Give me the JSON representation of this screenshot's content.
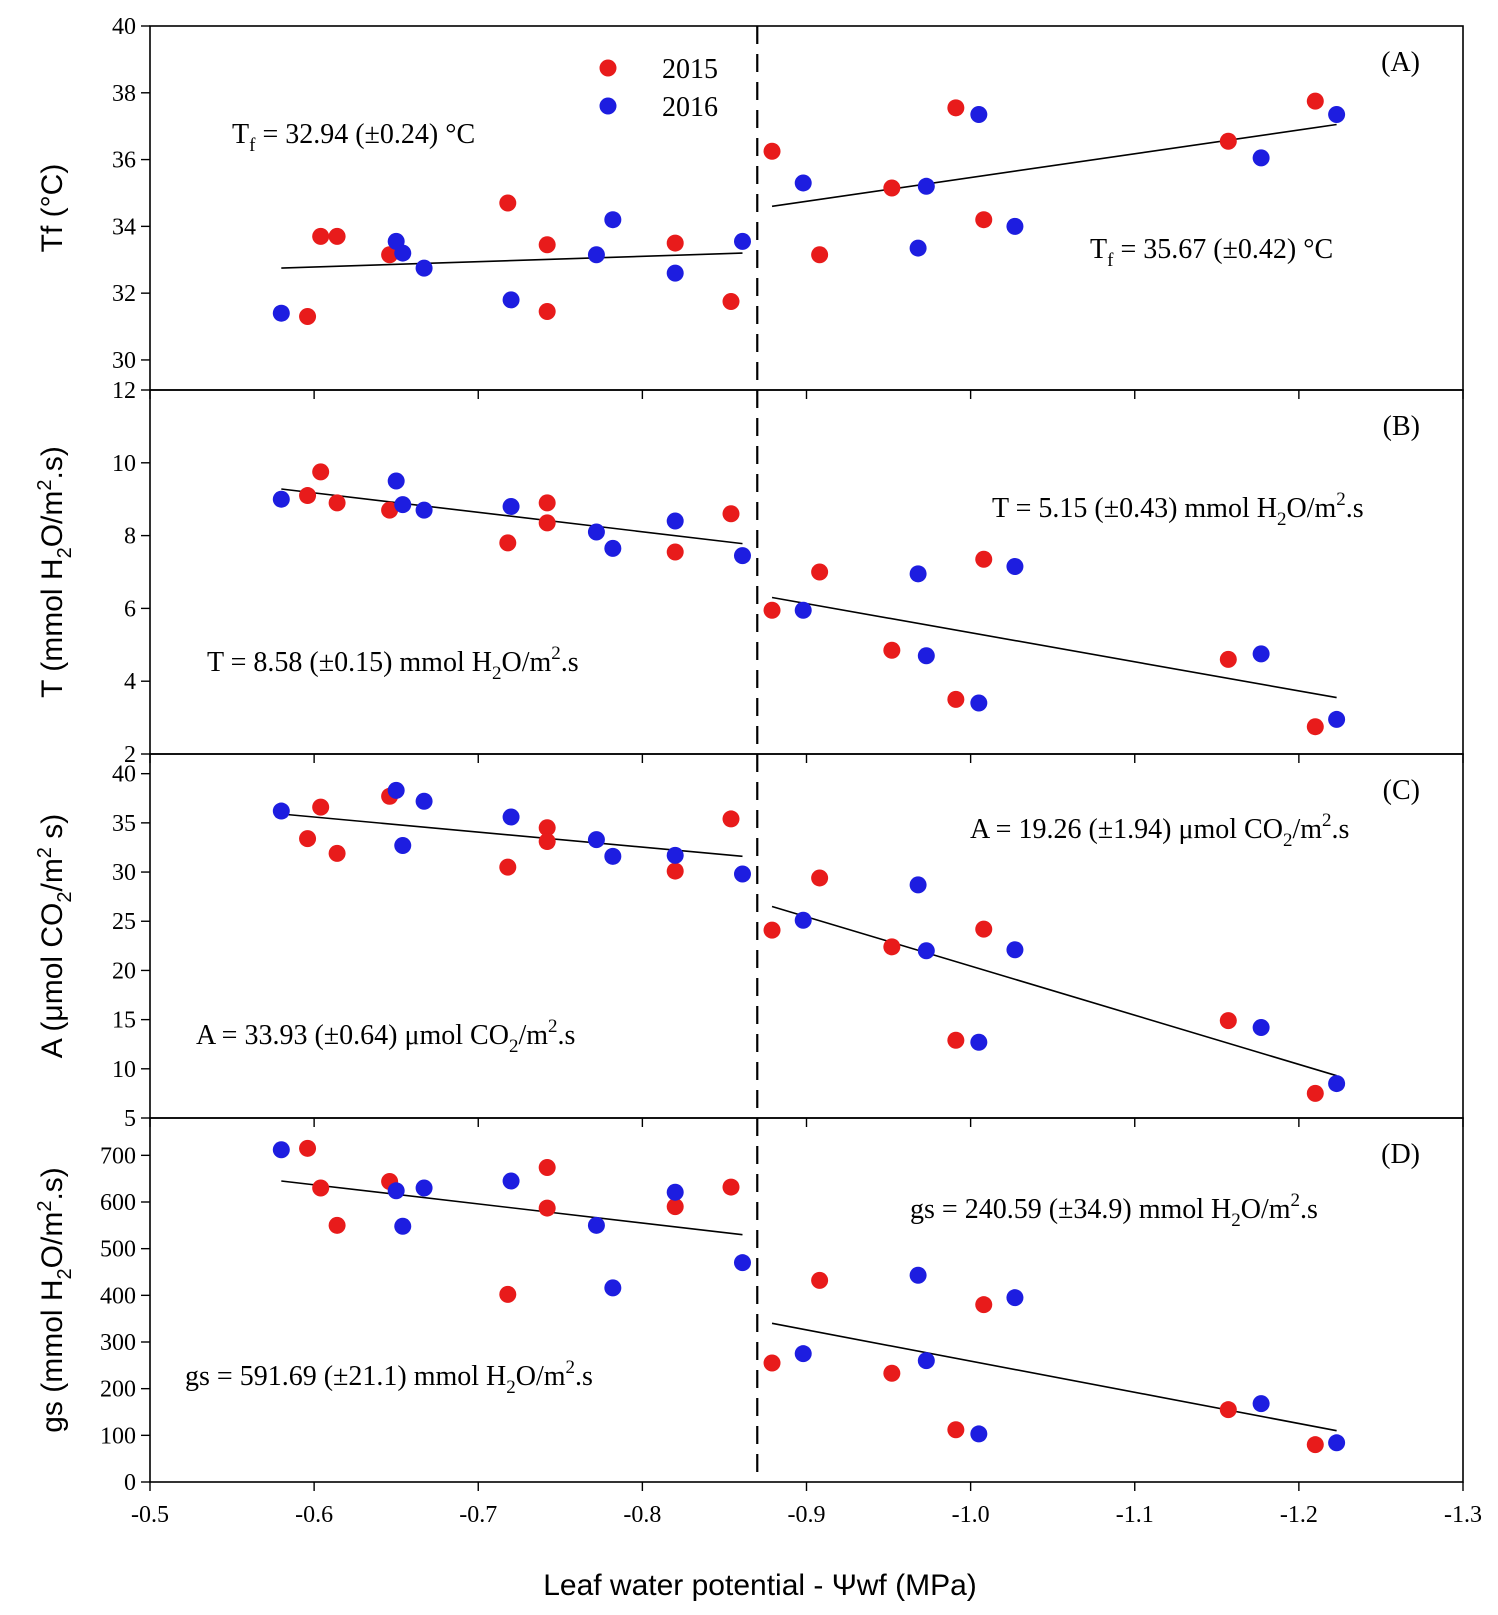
{
  "figure": {
    "xlabel": "Leaf water potential - Ψwf (MPa)",
    "legend": [
      {
        "label": "2015",
        "color": "#e81b1b"
      },
      {
        "label": "2016",
        "color": "#1d1de0"
      }
    ],
    "threshold_x": -0.87
  },
  "chart_data": [
    {
      "type": "scatter",
      "panel": "(A)",
      "ylabel": "Tf (°C)",
      "xlim": [
        -0.5,
        -1.3
      ],
      "ylim": [
        29.1,
        40
      ],
      "yticks": [
        30,
        32,
        34,
        36,
        38,
        40
      ],
      "series": [
        {
          "name": "2015",
          "color": "#e81b1b",
          "points": [
            [
              -0.596,
              31.3
            ],
            [
              -0.604,
              33.7
            ],
            [
              -0.614,
              33.7
            ],
            [
              -0.646,
              33.15
            ],
            [
              -0.718,
              34.7
            ],
            [
              -0.742,
              31.45
            ],
            [
              -0.742,
              33.45
            ],
            [
              -0.82,
              33.5
            ],
            [
              -0.854,
              31.75
            ],
            [
              -0.879,
              36.25
            ],
            [
              -0.908,
              33.15
            ],
            [
              -0.952,
              35.15
            ],
            [
              -0.991,
              37.55
            ],
            [
              -1.008,
              34.2
            ],
            [
              -1.157,
              36.55
            ],
            [
              -1.21,
              37.75
            ]
          ]
        },
        {
          "name": "2016",
          "color": "#1d1de0",
          "points": [
            [
              -0.58,
              31.4
            ],
            [
              -0.65,
              33.55
            ],
            [
              -0.654,
              33.2
            ],
            [
              -0.667,
              32.75
            ],
            [
              -0.72,
              31.8
            ],
            [
              -0.772,
              33.15
            ],
            [
              -0.782,
              34.2
            ],
            [
              -0.82,
              32.6
            ],
            [
              -0.861,
              33.55
            ],
            [
              -0.898,
              35.3
            ],
            [
              -0.968,
              33.35
            ],
            [
              -0.973,
              35.2
            ],
            [
              -1.005,
              37.35
            ],
            [
              -1.027,
              34.0
            ],
            [
              -1.177,
              36.05
            ],
            [
              -1.223,
              37.35
            ]
          ]
        }
      ],
      "fits": [
        {
          "x": [
            -0.58,
            -0.861
          ],
          "y": [
            32.75,
            33.2
          ]
        },
        {
          "x": [
            -0.879,
            -1.223
          ],
          "y": [
            34.6,
            37.05
          ]
        }
      ],
      "annotations": [
        {
          "prefix": "T",
          "sub": "f",
          "text": " = 32.94 (±0.24) °C"
        },
        {
          "prefix": "T",
          "sub": "f",
          "text": " = 35.67 (±0.42) °C"
        }
      ]
    },
    {
      "type": "scatter",
      "panel": "(B)",
      "ylabel": "T (mmol H2O/m2.s)",
      "xlim": [
        -0.5,
        -1.3
      ],
      "ylim": [
        2,
        12
      ],
      "yticks": [
        2,
        4,
        6,
        8,
        10,
        12
      ],
      "series": [
        {
          "name": "2015",
          "color": "#e81b1b",
          "points": [
            [
              -0.596,
              9.1
            ],
            [
              -0.604,
              9.75
            ],
            [
              -0.614,
              8.9
            ],
            [
              -0.646,
              8.7
            ],
            [
              -0.718,
              7.8
            ],
            [
              -0.742,
              8.9
            ],
            [
              -0.742,
              8.35
            ],
            [
              -0.82,
              7.55
            ],
            [
              -0.854,
              8.6
            ],
            [
              -0.879,
              5.95
            ],
            [
              -0.908,
              7.0
            ],
            [
              -0.952,
              4.85
            ],
            [
              -0.991,
              3.5
            ],
            [
              -1.008,
              7.35
            ],
            [
              -1.157,
              4.6
            ],
            [
              -1.21,
              2.75
            ]
          ]
        },
        {
          "name": "2016",
          "color": "#1d1de0",
          "points": [
            [
              -0.58,
              9.0
            ],
            [
              -0.65,
              9.5
            ],
            [
              -0.654,
              8.85
            ],
            [
              -0.667,
              8.7
            ],
            [
              -0.72,
              8.8
            ],
            [
              -0.772,
              8.1
            ],
            [
              -0.782,
              7.65
            ],
            [
              -0.82,
              8.4
            ],
            [
              -0.861,
              7.45
            ],
            [
              -0.898,
              5.95
            ],
            [
              -0.968,
              6.95
            ],
            [
              -0.973,
              4.7
            ],
            [
              -1.005,
              3.4
            ],
            [
              -1.027,
              7.15
            ],
            [
              -1.177,
              4.75
            ],
            [
              -1.223,
              2.95
            ]
          ]
        }
      ],
      "fits": [
        {
          "x": [
            -0.58,
            -0.861
          ],
          "y": [
            9.28,
            7.78
          ]
        },
        {
          "x": [
            -0.879,
            -1.223
          ],
          "y": [
            6.3,
            3.55
          ]
        }
      ],
      "annotations": [
        {
          "text": "T = 5.15 (±0.43) mmol H",
          "sub": "2",
          "mid": "O/m",
          "sup": "2",
          "end": ".s"
        },
        {
          "text": "T = 8.58 (±0.15) mmol H",
          "sub": "2",
          "mid": "O/m",
          "sup": "2",
          "end": ".s"
        }
      ]
    },
    {
      "type": "scatter",
      "panel": "(C)",
      "ylabel": "A (μmol CO2/m2 s)",
      "xlim": [
        -0.5,
        -1.3
      ],
      "ylim": [
        5,
        42
      ],
      "yticks": [
        5,
        10,
        15,
        20,
        25,
        30,
        35,
        40
      ],
      "series": [
        {
          "name": "2015",
          "color": "#e81b1b",
          "points": [
            [
              -0.596,
              33.4
            ],
            [
              -0.604,
              36.6
            ],
            [
              -0.614,
              31.9
            ],
            [
              -0.646,
              37.7
            ],
            [
              -0.718,
              30.5
            ],
            [
              -0.742,
              34.5
            ],
            [
              -0.742,
              33.1
            ],
            [
              -0.82,
              30.1
            ],
            [
              -0.854,
              35.4
            ],
            [
              -0.879,
              24.1
            ],
            [
              -0.908,
              29.4
            ],
            [
              -0.952,
              22.4
            ],
            [
              -0.991,
              12.9
            ],
            [
              -1.008,
              24.2
            ],
            [
              -1.157,
              14.9
            ],
            [
              -1.21,
              7.5
            ]
          ]
        },
        {
          "name": "2016",
          "color": "#1d1de0",
          "points": [
            [
              -0.58,
              36.2
            ],
            [
              -0.65,
              38.3
            ],
            [
              -0.654,
              32.7
            ],
            [
              -0.667,
              37.2
            ],
            [
              -0.72,
              35.6
            ],
            [
              -0.772,
              33.3
            ],
            [
              -0.782,
              31.6
            ],
            [
              -0.82,
              31.7
            ],
            [
              -0.861,
              29.8
            ],
            [
              -0.898,
              25.1
            ],
            [
              -0.968,
              28.7
            ],
            [
              -0.973,
              22.0
            ],
            [
              -1.005,
              12.7
            ],
            [
              -1.027,
              22.1
            ],
            [
              -1.177,
              14.2
            ],
            [
              -1.223,
              8.5
            ]
          ]
        }
      ],
      "fits": [
        {
          "x": [
            -0.58,
            -0.861
          ],
          "y": [
            35.9,
            31.6
          ]
        },
        {
          "x": [
            -0.879,
            -1.223
          ],
          "y": [
            26.5,
            9.3
          ]
        }
      ],
      "annotations": [
        {
          "text": "A = 19.26 (±1.94) μmol CO",
          "sub": "2",
          "mid": "/m",
          "sup": "2",
          "end": ".s"
        },
        {
          "text": "A = 33.93 (±0.64) μmol CO",
          "sub": "2",
          "mid": "/m",
          "sup": "2",
          "end": ".s"
        }
      ]
    },
    {
      "type": "scatter",
      "panel": "(D)",
      "ylabel": "gs (mmol H2O/m2.s)",
      "xlim": [
        -0.5,
        -1.3
      ],
      "ylim": [
        0,
        780
      ],
      "yticks": [
        0,
        100,
        200,
        300,
        400,
        500,
        600,
        700
      ],
      "series": [
        {
          "name": "2015",
          "color": "#e81b1b",
          "points": [
            [
              -0.596,
              715
            ],
            [
              -0.604,
              630
            ],
            [
              -0.614,
              550
            ],
            [
              -0.646,
              644
            ],
            [
              -0.718,
              402
            ],
            [
              -0.742,
              674
            ],
            [
              -0.742,
              587
            ],
            [
              -0.82,
              590
            ],
            [
              -0.854,
              632
            ],
            [
              -0.879,
              255
            ],
            [
              -0.908,
              432
            ],
            [
              -0.952,
              233
            ],
            [
              -0.991,
              112
            ],
            [
              -1.008,
              380
            ],
            [
              -1.157,
              155
            ],
            [
              -1.21,
              80
            ]
          ]
        },
        {
          "name": "2016",
          "color": "#1d1de0",
          "points": [
            [
              -0.58,
              712
            ],
            [
              -0.65,
              624
            ],
            [
              -0.654,
              548
            ],
            [
              -0.667,
              630
            ],
            [
              -0.72,
              645
            ],
            [
              -0.772,
              550
            ],
            [
              -0.782,
              416
            ],
            [
              -0.82,
              621
            ],
            [
              -0.861,
              470
            ],
            [
              -0.898,
              275
            ],
            [
              -0.968,
              443
            ],
            [
              -0.973,
              260
            ],
            [
              -1.005,
              103
            ],
            [
              -1.027,
              395
            ],
            [
              -1.177,
              168
            ],
            [
              -1.223,
              84
            ]
          ]
        }
      ],
      "fits": [
        {
          "x": [
            -0.58,
            -0.861
          ],
          "y": [
            645,
            530
          ]
        },
        {
          "x": [
            -0.879,
            -1.223
          ],
          "y": [
            340,
            110
          ]
        }
      ],
      "annotations": [
        {
          "text": "gs = 240.59 (±34.9) mmol H",
          "sub": "2",
          "mid": "O/m",
          "sup": "2",
          "end": ".s"
        },
        {
          "text": "gs = 591.69 (±21.1) mmol H",
          "sub": "2",
          "mid": "O/m",
          "sup": "2",
          "end": ".s"
        }
      ]
    }
  ],
  "xticks": [
    {
      "value": -0.5,
      "label": "-0.5"
    },
    {
      "value": -0.6,
      "label": "-0.6"
    },
    {
      "value": -0.7,
      "label": "-0.7"
    },
    {
      "value": -0.8,
      "label": "-0.8"
    },
    {
      "value": -0.9,
      "label": "-0.9"
    },
    {
      "value": -1.0,
      "label": "-1.0"
    },
    {
      "value": -1.1,
      "label": "-1.1"
    },
    {
      "value": -1.2,
      "label": "-1.2"
    },
    {
      "value": -1.3,
      "label": "-1.3"
    }
  ]
}
